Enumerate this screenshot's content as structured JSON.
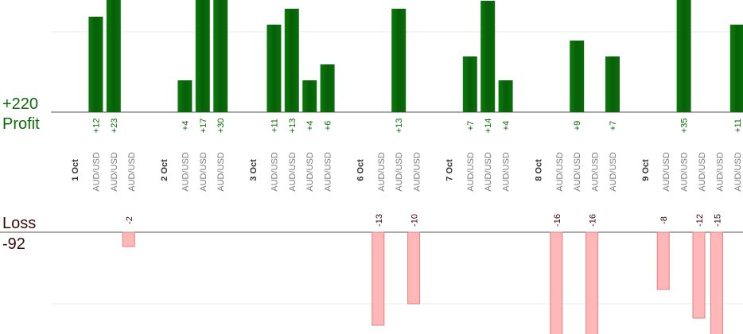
{
  "summary": {
    "profit_total": "+220",
    "profit_label": "Profit",
    "loss_label": "Loss",
    "loss_total": "-92"
  },
  "colors": {
    "profit_bar": "#0b6e0b",
    "profit_text": "#0a6a0a",
    "loss_bar": "#ffb7b7",
    "loss_bar_border": "#e08080",
    "loss_text": "#3a0a0a",
    "date_text": "#333333",
    "pair_text": "#7a7a7a"
  },
  "chart_data": {
    "type": "bar",
    "ylim_profit": [
      0,
      35
    ],
    "ylim_loss": [
      0,
      -14
    ],
    "grid": true,
    "groups": [
      {
        "date": "1 Oct",
        "trades": [
          {
            "pair": "AUD/USD",
            "value": 12,
            "label": "+12"
          },
          {
            "pair": "AUD/USD",
            "value": 23,
            "label": "+23"
          },
          {
            "pair": "AUD/USD",
            "value": -2,
            "label": "-2"
          }
        ]
      },
      {
        "date": "2 Oct",
        "trades": [
          {
            "pair": "AUD/USD",
            "value": 4,
            "label": "+4"
          },
          {
            "pair": "AUD/USD",
            "value": 17,
            "label": "+17"
          },
          {
            "pair": "AUD/USD",
            "value": 30,
            "label": "+30"
          }
        ]
      },
      {
        "date": "3 Oct",
        "trades": [
          {
            "pair": "AUD/USD",
            "value": 11,
            "label": "+11"
          },
          {
            "pair": "AUD/USD",
            "value": 13,
            "label": "+13"
          },
          {
            "pair": "AUD/USD",
            "value": 4,
            "label": "+4"
          },
          {
            "pair": "AUD/USD",
            "value": 6,
            "label": "+6"
          }
        ]
      },
      {
        "date": "6 Oct",
        "trades": [
          {
            "pair": "AUD/USD",
            "value": -13,
            "label": "-13"
          },
          {
            "pair": "AUD/USD",
            "value": 13,
            "label": "+13"
          },
          {
            "pair": "AUD/USD",
            "value": -10,
            "label": "-10"
          }
        ]
      },
      {
        "date": "7 Oct",
        "trades": [
          {
            "pair": "AUD/USD",
            "value": 7,
            "label": "+7"
          },
          {
            "pair": "AUD/USD",
            "value": 14,
            "label": "+14"
          },
          {
            "pair": "AUD/USD",
            "value": 4,
            "label": "+4"
          }
        ]
      },
      {
        "date": "8 Oct",
        "trades": [
          {
            "pair": "AUD/USD",
            "value": -16,
            "label": "-16"
          },
          {
            "pair": "AUD/USD",
            "value": 9,
            "label": "+9"
          },
          {
            "pair": "AUD/USD",
            "value": -16,
            "label": "-16"
          },
          {
            "pair": "AUD/USD",
            "value": 7,
            "label": "+7"
          }
        ]
      },
      {
        "date": "9 Oct",
        "trades": [
          {
            "pair": "AUD/USD",
            "value": -8,
            "label": "-8"
          },
          {
            "pair": "AUD/USD",
            "value": 35,
            "label": "+35"
          },
          {
            "pair": "AUD/USD",
            "value": -12,
            "label": "-12"
          },
          {
            "pair": "AUD/USD",
            "value": -15,
            "label": "-15"
          },
          {
            "pair": "AUD/USD",
            "value": 11,
            "label": "+11"
          }
        ]
      }
    ]
  }
}
